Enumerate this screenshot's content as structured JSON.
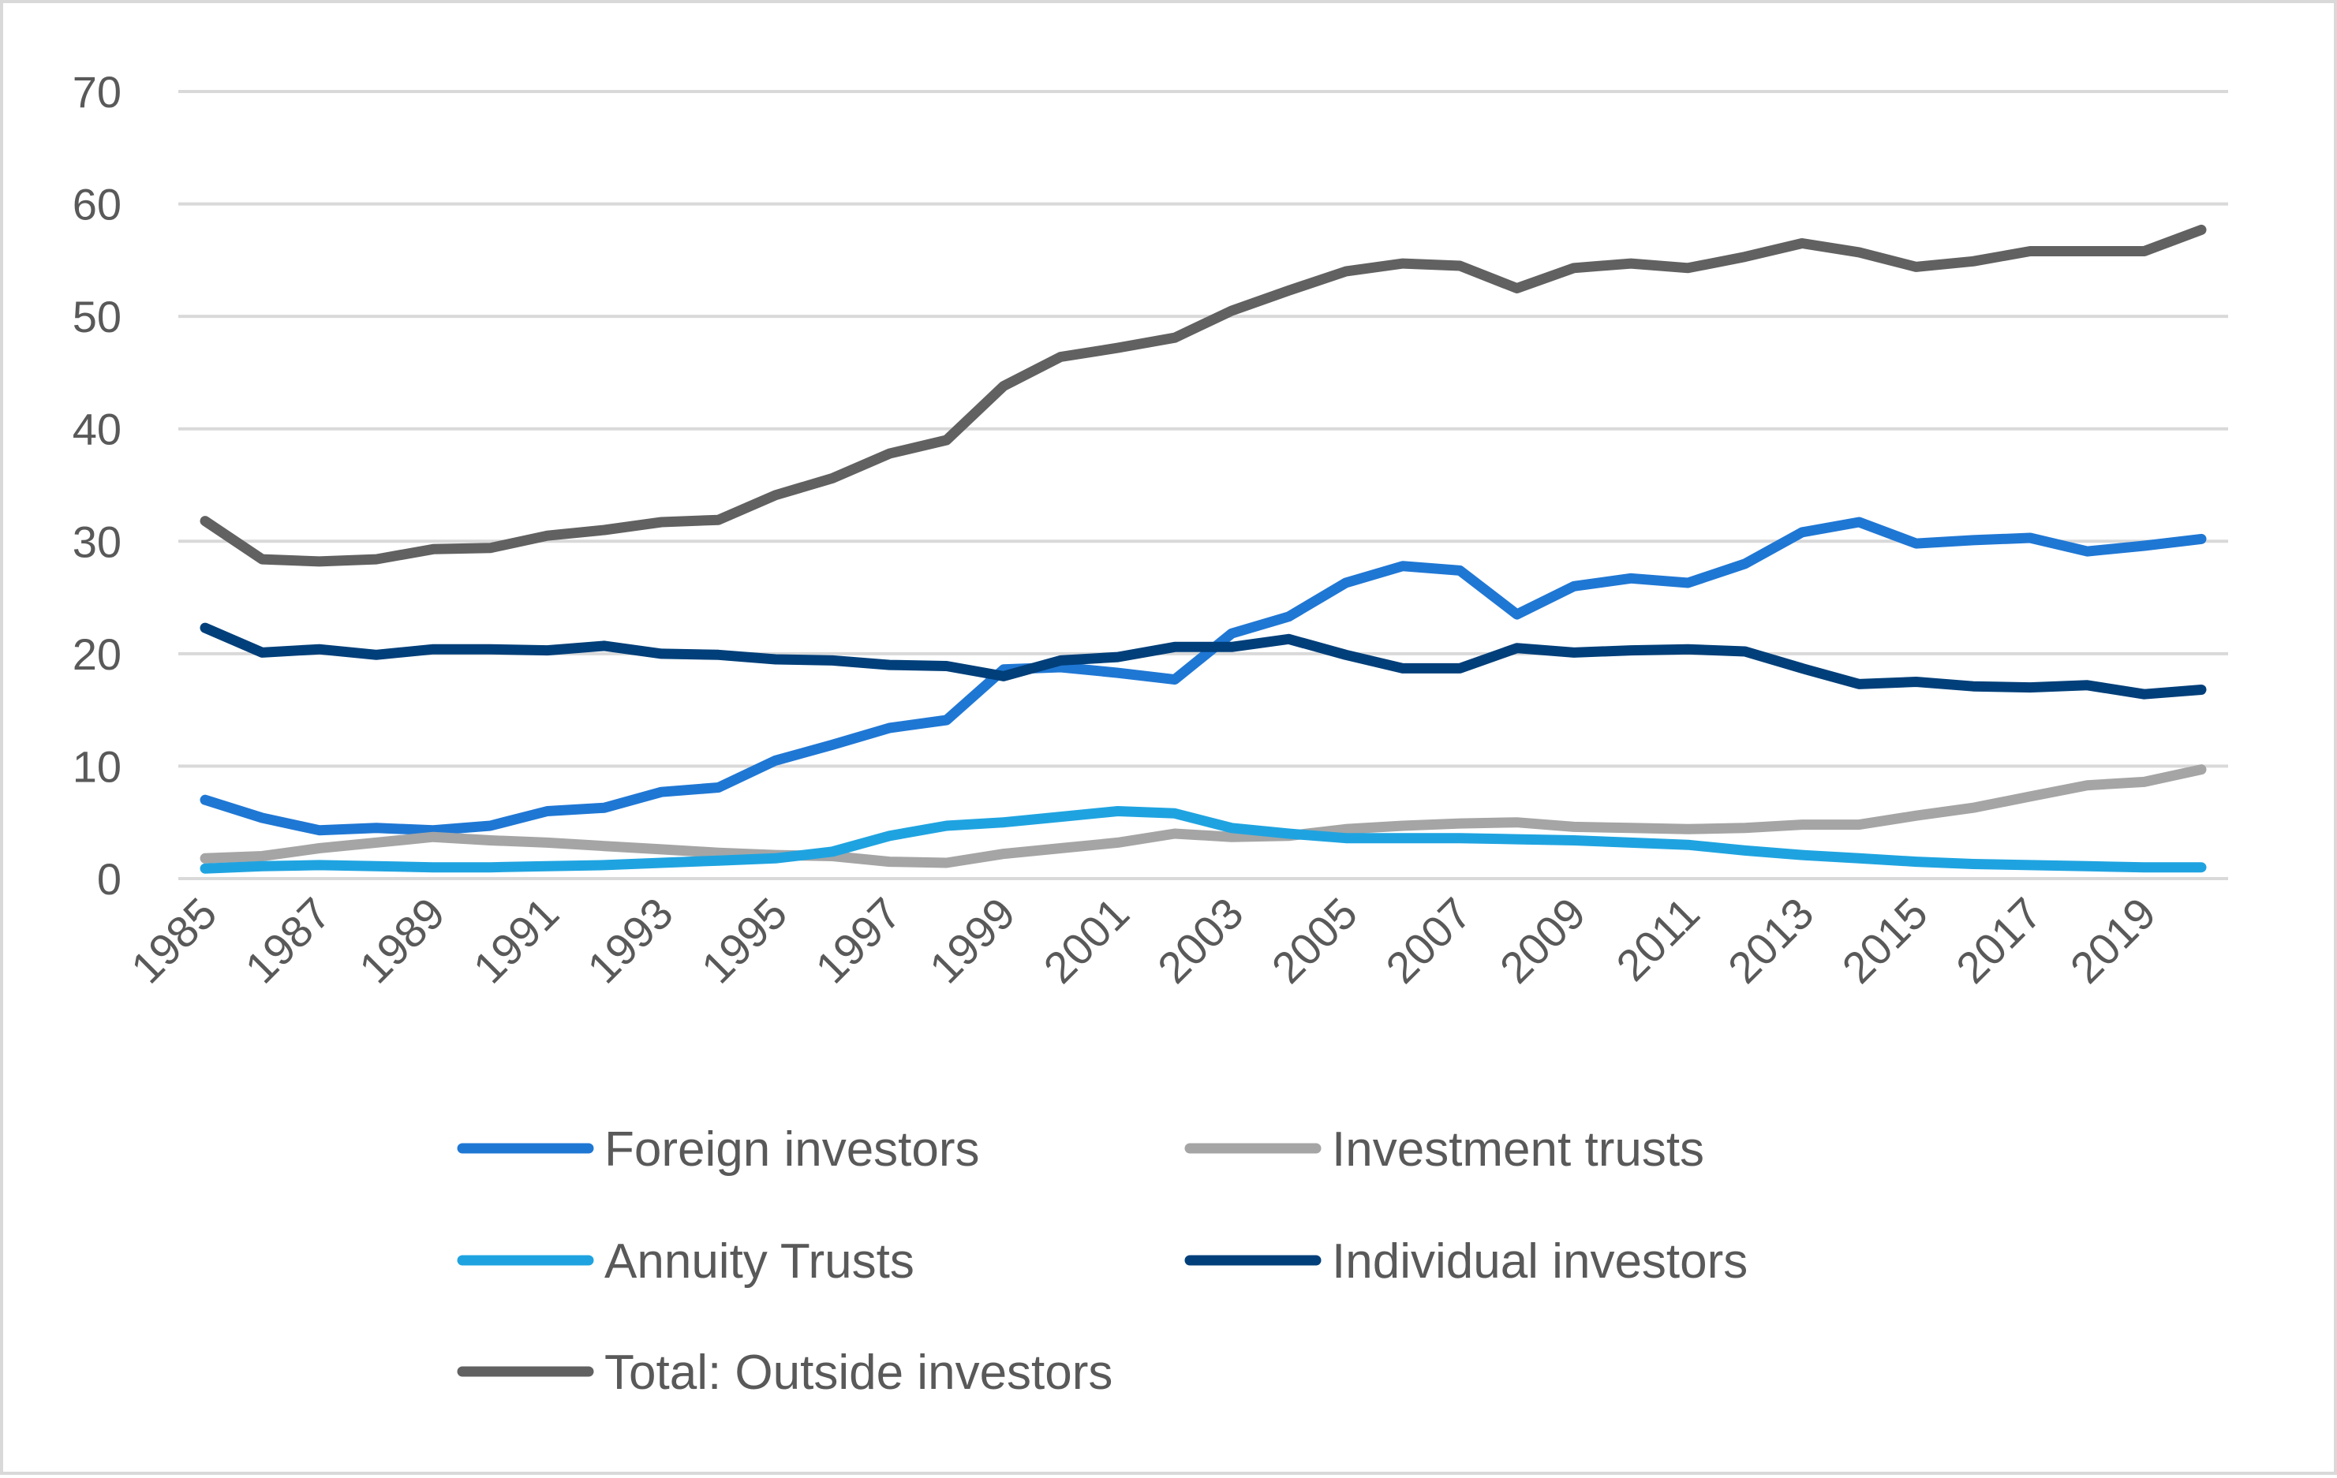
{
  "chart_data": {
    "type": "line",
    "title": "",
    "xlabel": "",
    "ylabel": "",
    "ylim": [
      0,
      70
    ],
    "yticks": [
      0,
      10,
      20,
      30,
      40,
      50,
      60,
      70
    ],
    "grid": true,
    "legend_position": "bottom",
    "x": [
      1985,
      1986,
      1987,
      1988,
      1989,
      1990,
      1991,
      1992,
      1993,
      1994,
      1995,
      1996,
      1997,
      1998,
      1999,
      2000,
      2001,
      2002,
      2003,
      2004,
      2005,
      2006,
      2007,
      2008,
      2009,
      2010,
      2011,
      2012,
      2013,
      2014,
      2015,
      2016,
      2017,
      2018,
      2019,
      2020
    ],
    "xtick_labels": [
      "1985",
      "1987",
      "1989",
      "1991",
      "1993",
      "1995",
      "1997",
      "1999",
      "2001",
      "2003",
      "2005",
      "2007",
      "2009",
      "2011",
      "2013",
      "2015",
      "2017",
      "2019"
    ],
    "series": [
      {
        "name": "Foreign investors",
        "color": "#1f77d4",
        "values": [
          7.0,
          5.4,
          4.3,
          4.5,
          4.3,
          4.7,
          6.0,
          6.3,
          7.7,
          8.1,
          10.5,
          11.9,
          13.4,
          14.1,
          18.6,
          18.8,
          18.3,
          17.7,
          21.8,
          23.3,
          26.3,
          27.8,
          27.4,
          23.5,
          26.0,
          26.7,
          26.3,
          28.0,
          30.8,
          31.7,
          29.8,
          30.1,
          30.3,
          29.1,
          29.6,
          30.2
        ]
      },
      {
        "name": "Investment trusts",
        "color": "#a5a5a5",
        "values": [
          1.8,
          2.0,
          2.7,
          3.2,
          3.7,
          3.4,
          3.2,
          2.9,
          2.6,
          2.3,
          2.1,
          2.0,
          1.5,
          1.4,
          2.2,
          2.7,
          3.2,
          4.0,
          3.7,
          3.8,
          4.4,
          4.7,
          4.9,
          5.0,
          4.6,
          4.5,
          4.4,
          4.5,
          4.8,
          4.8,
          5.6,
          6.3,
          7.3,
          8.3,
          8.6,
          9.7
        ]
      },
      {
        "name": "Annuity Trusts",
        "color": "#1fa3e0",
        "values": [
          0.9,
          1.1,
          1.2,
          1.1,
          1.0,
          1.0,
          1.1,
          1.2,
          1.4,
          1.6,
          1.8,
          2.4,
          3.8,
          4.7,
          5.0,
          5.5,
          6.0,
          5.8,
          4.5,
          4.0,
          3.6,
          3.6,
          3.6,
          3.5,
          3.4,
          3.2,
          3.0,
          2.5,
          2.1,
          1.8,
          1.5,
          1.3,
          1.2,
          1.1,
          1.0,
          1.0
        ]
      },
      {
        "name": "Individual investors",
        "color": "#003f7a",
        "values": [
          22.3,
          20.1,
          20.4,
          19.9,
          20.4,
          20.4,
          20.3,
          20.7,
          20.0,
          19.9,
          19.5,
          19.4,
          19.0,
          18.9,
          18.0,
          19.4,
          19.7,
          20.6,
          20.6,
          21.3,
          19.9,
          18.7,
          18.7,
          20.5,
          20.1,
          20.3,
          20.4,
          20.2,
          18.7,
          17.3,
          17.5,
          17.1,
          17.0,
          17.2,
          16.4,
          16.8
        ]
      },
      {
        "name": "Total: Outside investors",
        "color": "#616161",
        "values": [
          31.8,
          28.4,
          28.2,
          28.4,
          29.3,
          29.4,
          30.5,
          31.0,
          31.7,
          31.9,
          34.1,
          35.6,
          37.8,
          39.0,
          43.8,
          46.4,
          47.2,
          48.1,
          50.5,
          52.3,
          54.0,
          54.7,
          54.5,
          52.5,
          54.3,
          54.7,
          54.3,
          55.3,
          56.5,
          55.7,
          54.4,
          54.9,
          55.8,
          55.8,
          55.8,
          57.7
        ]
      }
    ]
  }
}
